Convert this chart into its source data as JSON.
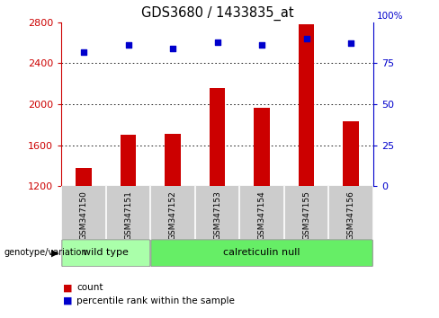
{
  "title": "GDS3680 / 1433835_at",
  "samples": [
    "GSM347150",
    "GSM347151",
    "GSM347152",
    "GSM347153",
    "GSM347154",
    "GSM347155",
    "GSM347156"
  ],
  "counts": [
    1380,
    1700,
    1710,
    2160,
    1960,
    2780,
    1830
  ],
  "percentile_ranks": [
    82,
    86,
    84,
    88,
    86,
    90,
    87
  ],
  "ylim_left": [
    1200,
    2800
  ],
  "ylim_right": [
    0,
    100
  ],
  "yticks_left": [
    1200,
    1600,
    2000,
    2400,
    2800
  ],
  "yticks_right": [
    0,
    25,
    50,
    75
  ],
  "bar_color": "#cc0000",
  "scatter_color": "#0000cc",
  "grid_color": "#000000",
  "groups": [
    {
      "label": "wild type",
      "indices": [
        0,
        1
      ],
      "color": "#aaffaa"
    },
    {
      "label": "calreticulin null",
      "indices": [
        2,
        3,
        4,
        5,
        6
      ],
      "color": "#66ee66"
    }
  ],
  "group_label_x": "genotype/variation",
  "legend_count_label": "count",
  "legend_pct_label": "percentile rank within the sample",
  "left_axis_color": "#cc0000",
  "right_axis_color": "#0000cc",
  "sample_box_color": "#cccccc",
  "fig_bg": "#ffffff"
}
